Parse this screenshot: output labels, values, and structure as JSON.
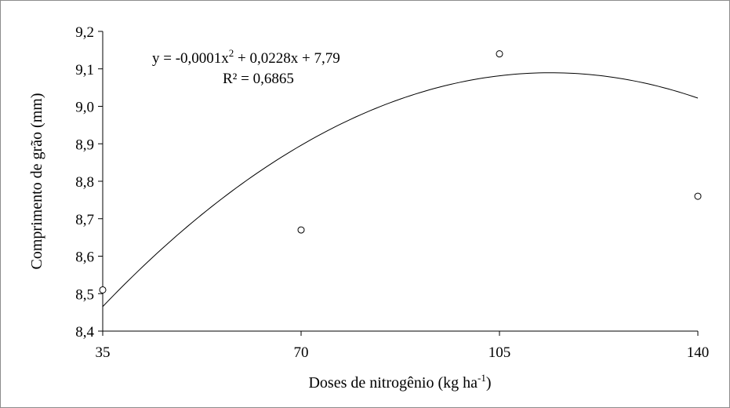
{
  "chart_data": {
    "type": "scatter",
    "xlabel": "Doses de nitrogênio (kg ha",
    "xlabel_sup": "-1",
    "xlabel_end": ")",
    "ylabel": "Comprimento de grão (mm)",
    "x_ticks": [
      35,
      70,
      105,
      140
    ],
    "x_tick_labels": [
      "35",
      "70",
      "105",
      "140"
    ],
    "xlim": [
      35,
      140
    ],
    "y_ticks": [
      8.4,
      8.5,
      8.6,
      8.7,
      8.8,
      8.9,
      9.0,
      9.1,
      9.2
    ],
    "y_tick_labels": [
      "8,4",
      "8,5",
      "8,6",
      "8,7",
      "8,8",
      "8,9",
      "9,0",
      "9,1",
      "9,2"
    ],
    "ylim": [
      8.4,
      9.2
    ],
    "points": [
      {
        "x": 35,
        "y": 8.51
      },
      {
        "x": 70,
        "y": 8.67
      },
      {
        "x": 105,
        "y": 9.14
      },
      {
        "x": 140,
        "y": 8.76
      }
    ],
    "trendline": {
      "a": -0.0001,
      "b": 0.0228,
      "c": 7.79
    },
    "equation_pre": "y = -0,0001x",
    "equation_sup": "2",
    "equation_post": " + 0,0228x + 7,79",
    "r2_label": "R² = 0,6865",
    "grid": false,
    "legend": "none",
    "colors": {
      "marks": "#000000",
      "frame": "#8c8c8c"
    }
  }
}
